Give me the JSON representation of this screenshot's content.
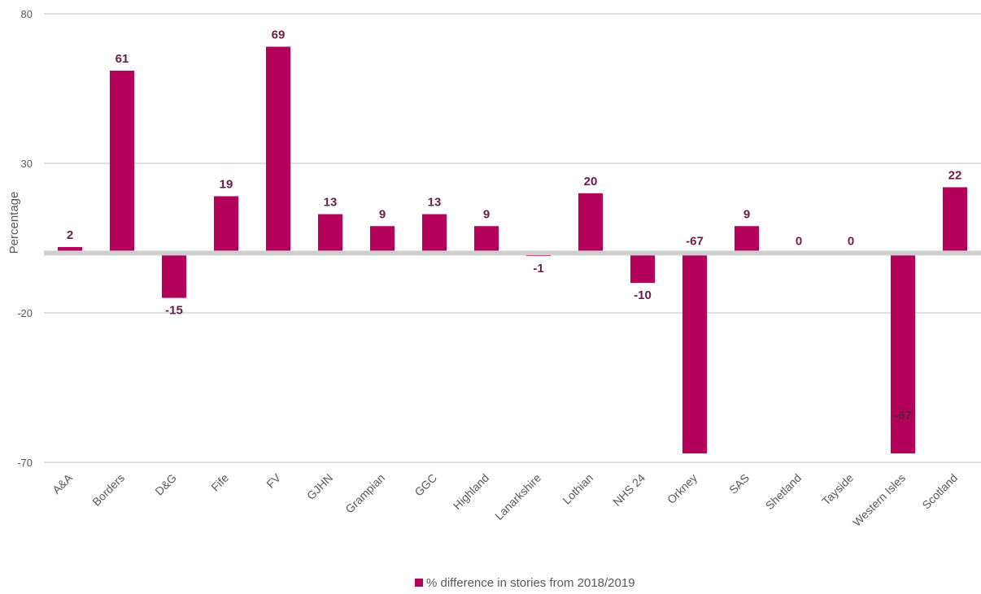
{
  "chart_data": {
    "type": "bar",
    "categories": [
      "A&A",
      "Borders",
      "D&G",
      "Fife",
      "FV",
      "GJHN",
      "Grampian",
      "GGC",
      "Highland",
      "Lanarkshire",
      "Lothian",
      "NHS 24",
      "Orkney",
      "SAS",
      "Shetland",
      "Tayside",
      "Western Isles",
      "Scotland"
    ],
    "series": [
      {
        "name": "% difference in stories from 2018/2019",
        "values": [
          2,
          61,
          -15,
          19,
          69,
          13,
          9,
          13,
          9,
          -1,
          20,
          -10,
          -67,
          9,
          0,
          0,
          -67,
          22
        ],
        "labels": [
          "2",
          "61",
          "-15",
          "19",
          "69",
          "13",
          "9",
          "13",
          "9",
          "-1",
          "20",
          "-10",
          "-67",
          "9",
          "0",
          "0",
          "-67",
          "22"
        ],
        "color": "#b3005a"
      }
    ],
    "ylabel": "Percentage",
    "ylim": [
      -70,
      80
    ],
    "yticks": [
      80,
      30,
      -20,
      -70
    ],
    "grid": true,
    "legend": "bottom"
  }
}
